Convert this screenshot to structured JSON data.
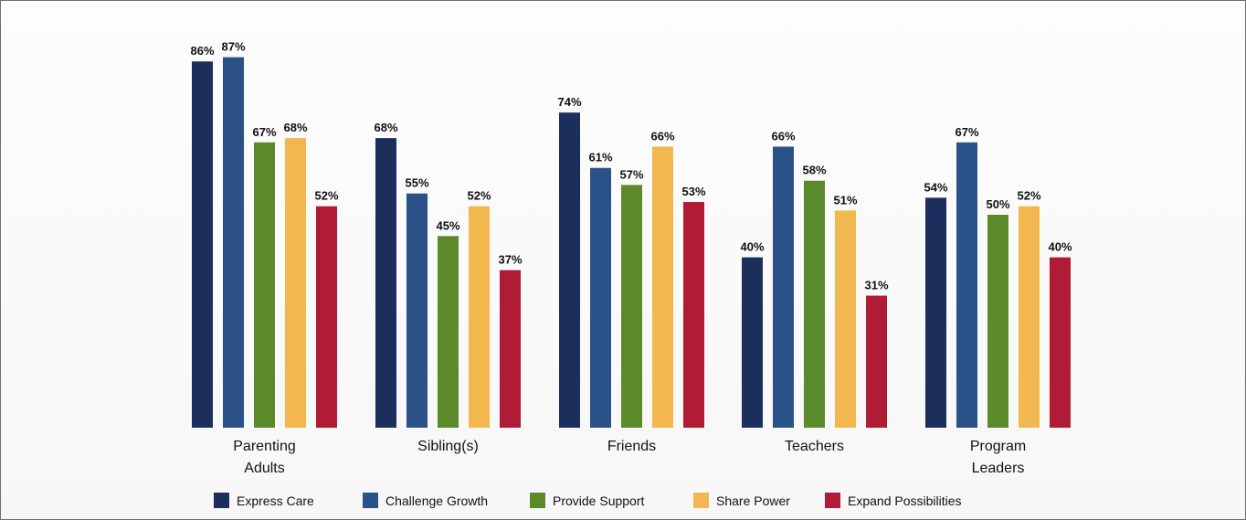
{
  "chart_data": {
    "type": "bar",
    "title": "",
    "xlabel": "",
    "ylabel": "",
    "ylim": [
      0,
      100
    ],
    "categories": [
      [
        "Parenting",
        "Adults"
      ],
      [
        "Sibling(s)"
      ],
      [
        "Friends"
      ],
      [
        "Teachers"
      ],
      [
        "Program",
        "Leaders"
      ]
    ],
    "series": [
      {
        "name": "Express Care",
        "color": "#1c2f5c",
        "values": [
          86,
          68,
          74,
          40,
          54
        ]
      },
      {
        "name": "Challenge Growth",
        "color": "#2a5288",
        "values": [
          87,
          55,
          61,
          66,
          67
        ]
      },
      {
        "name": "Provide Support",
        "color": "#5b8a2a",
        "values": [
          67,
          45,
          57,
          58,
          50
        ]
      },
      {
        "name": "Share Power",
        "color": "#f2b84f",
        "values": [
          68,
          52,
          66,
          51,
          52
        ]
      },
      {
        "name": "Expand Possibilities",
        "color": "#b01c35",
        "values": [
          52,
          37,
          53,
          31,
          40
        ]
      }
    ],
    "value_suffix": "%",
    "legend_position": "bottom",
    "grid": false
  }
}
